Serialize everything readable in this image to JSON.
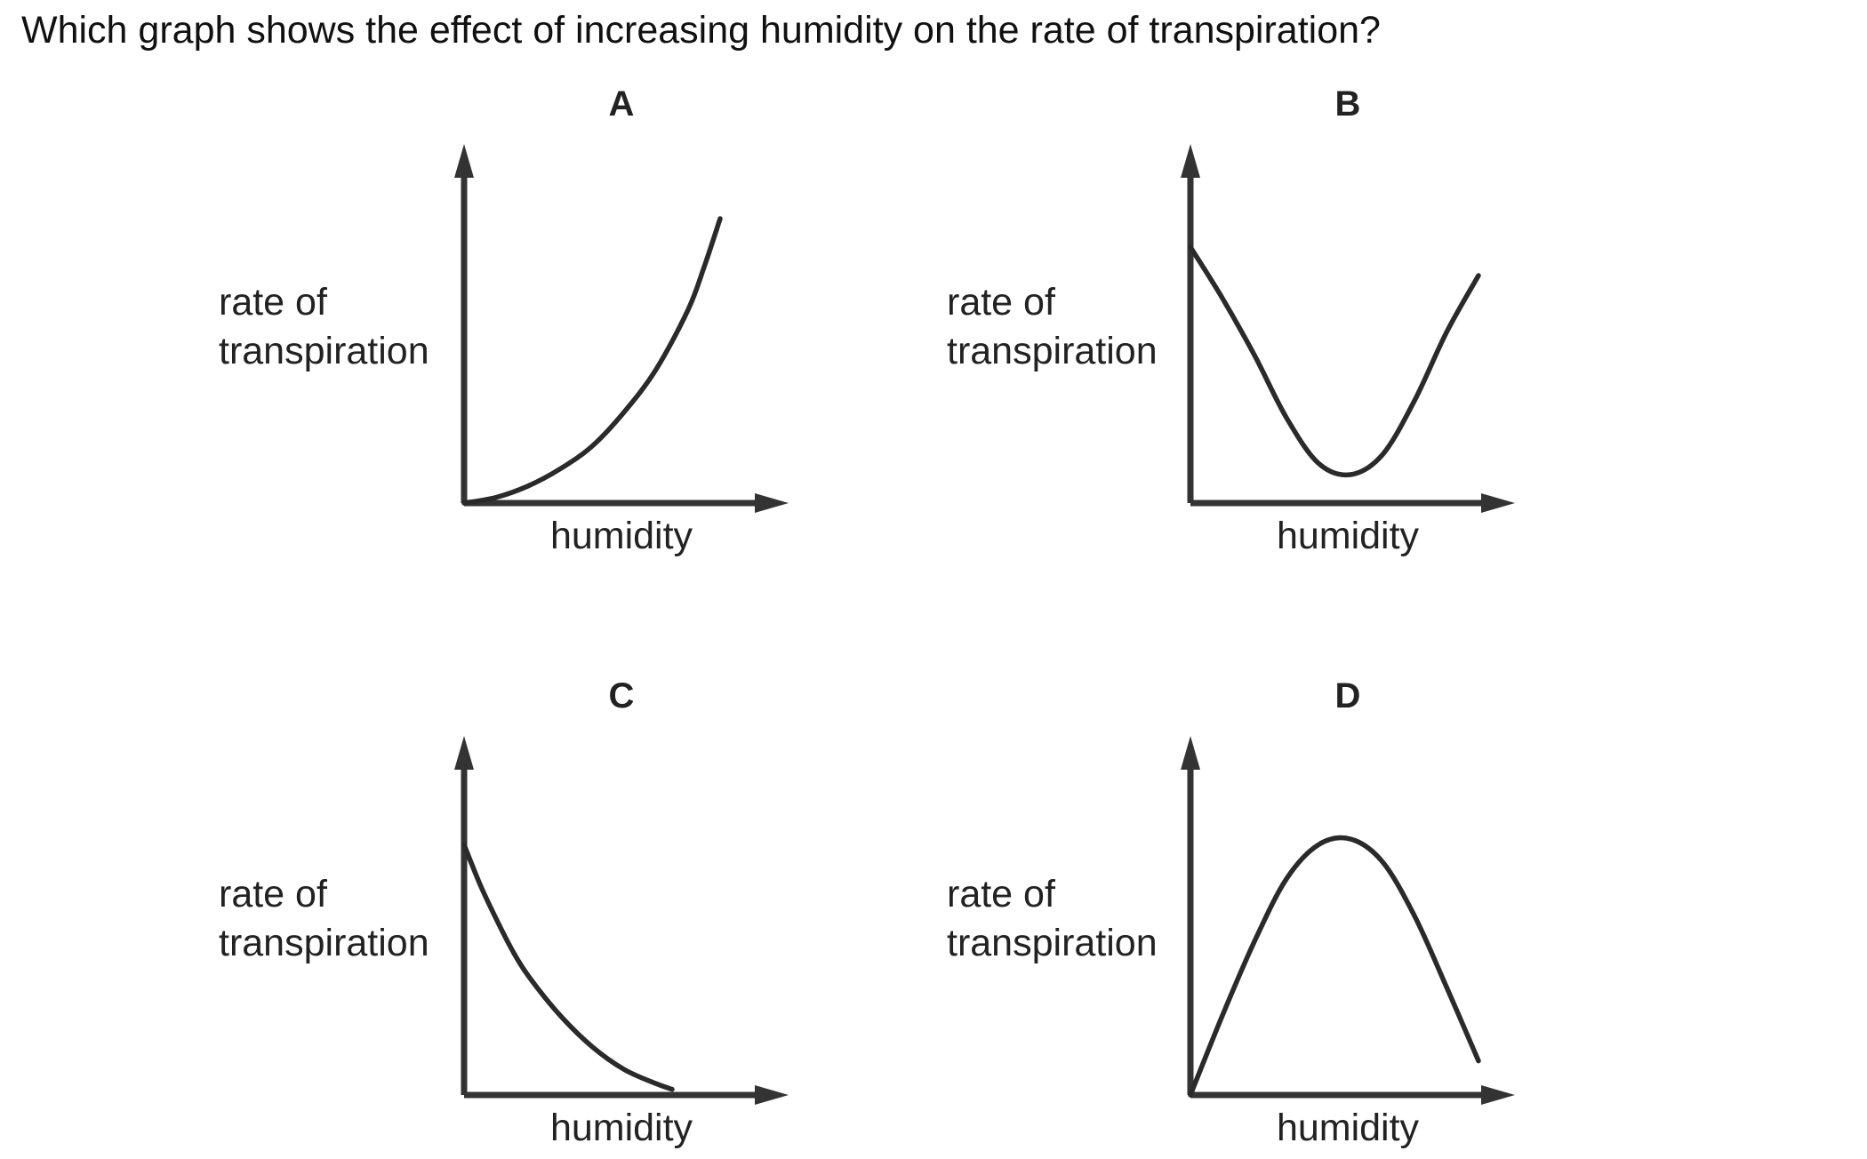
{
  "question": "Which graph shows the effect of increasing humidity on the rate of transpiration?",
  "chart_data": [
    {
      "type": "line",
      "title": "A",
      "ylabel": [
        "rate of",
        "transpiration"
      ],
      "xlabel": "humidity",
      "series": [
        {
          "x": [
            0,
            0.1,
            0.2,
            0.3,
            0.4,
            0.5,
            0.6,
            0.7,
            0.75,
            0.8
          ],
          "y": [
            0,
            0.02,
            0.06,
            0.12,
            0.2,
            0.32,
            0.47,
            0.68,
            0.83,
            1.0
          ]
        }
      ]
    },
    {
      "type": "line",
      "title": "B",
      "ylabel": [
        "rate of",
        "transpiration"
      ],
      "xlabel": "humidity",
      "series": [
        {
          "x": [
            0,
            0.1,
            0.2,
            0.3,
            0.4,
            0.5,
            0.6,
            0.7,
            0.8,
            0.9
          ],
          "y": [
            0.9,
            0.72,
            0.52,
            0.3,
            0.14,
            0.1,
            0.17,
            0.36,
            0.6,
            0.8
          ]
        }
      ]
    },
    {
      "type": "line",
      "title": "C",
      "ylabel": [
        "rate of",
        "transpiration"
      ],
      "xlabel": "humidity",
      "series": [
        {
          "x": [
            0,
            0.05,
            0.1,
            0.15,
            0.2,
            0.3,
            0.4,
            0.5,
            0.6,
            0.65
          ],
          "y": [
            0.88,
            0.74,
            0.62,
            0.51,
            0.42,
            0.28,
            0.17,
            0.09,
            0.04,
            0.02
          ]
        }
      ]
    },
    {
      "type": "line",
      "title": "D",
      "ylabel": [
        "rate of",
        "transpiration"
      ],
      "xlabel": "humidity",
      "series": [
        {
          "x": [
            0,
            0.1,
            0.2,
            0.3,
            0.4,
            0.5,
            0.6,
            0.7,
            0.8,
            0.9
          ],
          "y": [
            0,
            0.28,
            0.54,
            0.76,
            0.88,
            0.9,
            0.82,
            0.63,
            0.38,
            0.12
          ]
        }
      ]
    }
  ]
}
